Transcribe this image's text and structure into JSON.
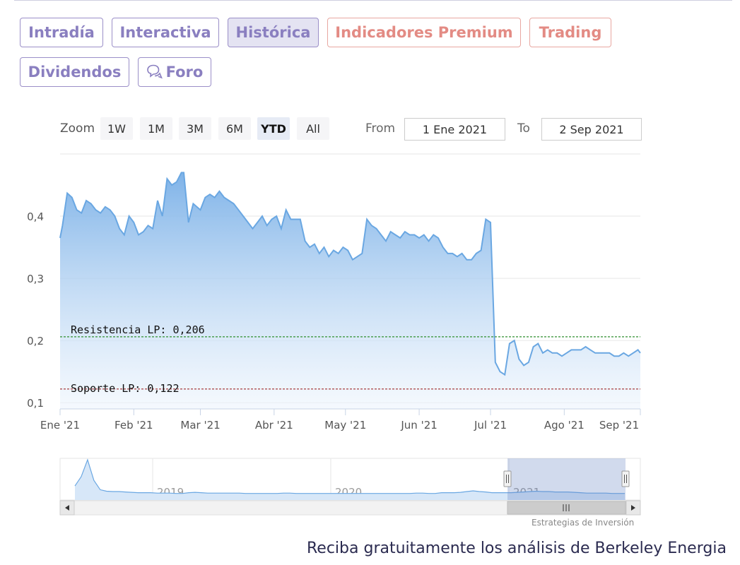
{
  "tabs": {
    "intraday": "Intradía",
    "interactive": "Interactiva",
    "historic": "Histórica",
    "premium": "Indicadores Premium",
    "trading": "Trading",
    "dividends": "Dividendos",
    "forum": "Foro"
  },
  "range_selector": {
    "zoom_label": "Zoom",
    "buttons": [
      "1W",
      "1M",
      "3M",
      "6M",
      "YTD",
      "All"
    ],
    "selected": "YTD",
    "from_label": "From",
    "from_value": "1 Ene 2021",
    "to_label": "To",
    "to_value": "2 Sep 2021"
  },
  "colors": {
    "line": "#6aa7e2",
    "fill_top": "#7fb3e8",
    "resistance": "#2f8f2f",
    "support": "#a02b2b",
    "tab_purple": "#8a7fc0",
    "tab_red": "#e38b84"
  },
  "chart_data": {
    "type": "area",
    "y_ticks": [
      "0,1",
      "0,2",
      "0,3",
      "0,4"
    ],
    "x_ticks": [
      "Ene '21",
      "Feb '21",
      "Mar '21",
      "Abr '21",
      "May '21",
      "Jun '21",
      "Jul '21",
      "Ago '21",
      "Sep '21"
    ],
    "ylim": [
      0.09,
      0.5
    ],
    "xlim": [
      "2021-01-01",
      "2021-09-02"
    ],
    "series": [
      {
        "x": [
          "2021-01-01",
          "2021-01-02",
          "2021-01-04",
          "2021-01-06",
          "2021-01-08",
          "2021-01-10",
          "2021-01-12",
          "2021-01-14",
          "2021-01-16",
          "2021-01-18",
          "2021-01-20",
          "2021-01-22",
          "2021-01-24",
          "2021-01-26",
          "2021-01-28",
          "2021-01-30",
          "2021-02-01",
          "2021-02-03",
          "2021-02-05",
          "2021-02-07",
          "2021-02-09",
          "2021-02-11",
          "2021-02-13",
          "2021-02-15",
          "2021-02-17",
          "2021-02-19",
          "2021-02-21",
          "2021-02-22",
          "2021-02-24",
          "2021-02-26",
          "2021-03-01",
          "2021-03-03",
          "2021-03-05",
          "2021-03-07",
          "2021-03-09",
          "2021-03-11",
          "2021-03-13",
          "2021-03-15",
          "2021-03-17",
          "2021-03-19",
          "2021-03-21",
          "2021-03-23",
          "2021-03-25",
          "2021-03-27",
          "2021-03-29",
          "2021-03-31",
          "2021-04-02",
          "2021-04-04",
          "2021-04-06",
          "2021-04-08",
          "2021-04-10",
          "2021-04-12",
          "2021-04-14",
          "2021-04-16",
          "2021-04-18",
          "2021-04-20",
          "2021-04-22",
          "2021-04-24",
          "2021-04-26",
          "2021-04-28",
          "2021-04-30",
          "2021-05-02",
          "2021-05-04",
          "2021-05-06",
          "2021-05-08",
          "2021-05-10",
          "2021-05-12",
          "2021-05-14",
          "2021-05-16",
          "2021-05-18",
          "2021-05-20",
          "2021-05-22",
          "2021-05-24",
          "2021-05-26",
          "2021-05-28",
          "2021-05-30",
          "2021-06-01",
          "2021-06-03",
          "2021-06-05",
          "2021-06-07",
          "2021-06-09",
          "2021-06-11",
          "2021-06-13",
          "2021-06-15",
          "2021-06-17",
          "2021-06-19",
          "2021-06-21",
          "2021-06-23",
          "2021-06-25",
          "2021-06-27",
          "2021-06-29",
          "2021-07-01",
          "2021-07-03",
          "2021-07-05",
          "2021-07-07",
          "2021-07-09",
          "2021-07-11",
          "2021-07-13",
          "2021-07-15",
          "2021-07-17",
          "2021-07-19",
          "2021-07-21",
          "2021-07-23",
          "2021-07-25",
          "2021-07-27",
          "2021-07-29",
          "2021-07-31",
          "2021-08-02",
          "2021-08-04",
          "2021-08-06",
          "2021-08-08",
          "2021-08-10",
          "2021-08-12",
          "2021-08-14",
          "2021-08-16",
          "2021-08-18",
          "2021-08-20",
          "2021-08-22",
          "2021-08-24",
          "2021-08-26",
          "2021-08-28",
          "2021-08-30",
          "2021-09-01",
          "2021-09-02"
        ],
        "y": [
          0.365,
          0.385,
          0.437,
          0.43,
          0.41,
          0.405,
          0.425,
          0.42,
          0.41,
          0.405,
          0.415,
          0.41,
          0.4,
          0.38,
          0.37,
          0.4,
          0.39,
          0.37,
          0.375,
          0.385,
          0.38,
          0.425,
          0.4,
          0.46,
          0.45,
          0.455,
          0.47,
          0.47,
          0.39,
          0.42,
          0.41,
          0.43,
          0.435,
          0.43,
          0.44,
          0.43,
          0.425,
          0.42,
          0.41,
          0.4,
          0.39,
          0.38,
          0.39,
          0.4,
          0.385,
          0.395,
          0.4,
          0.38,
          0.41,
          0.395,
          0.395,
          0.395,
          0.36,
          0.35,
          0.355,
          0.34,
          0.35,
          0.335,
          0.345,
          0.34,
          0.35,
          0.345,
          0.33,
          0.335,
          0.34,
          0.395,
          0.385,
          0.38,
          0.37,
          0.36,
          0.375,
          0.37,
          0.365,
          0.375,
          0.37,
          0.37,
          0.365,
          0.37,
          0.36,
          0.37,
          0.365,
          0.35,
          0.34,
          0.34,
          0.335,
          0.34,
          0.33,
          0.33,
          0.34,
          0.345,
          0.395,
          0.39,
          0.165,
          0.15,
          0.145,
          0.195,
          0.2,
          0.17,
          0.16,
          0.165,
          0.19,
          0.195,
          0.18,
          0.185,
          0.18,
          0.18,
          0.175,
          0.18,
          0.185,
          0.185,
          0.185,
          0.19,
          0.185,
          0.18,
          0.18,
          0.18,
          0.18,
          0.175,
          0.175,
          0.18,
          0.175,
          0.18,
          0.185,
          0.18
        ]
      }
    ],
    "annotations": [
      {
        "label": "Resistencia LP: 0,206",
        "value": 0.206
      },
      {
        "label": "Soporte LP: 0,122",
        "value": 0.122
      }
    ],
    "navigator": {
      "x_ticks": [
        "2019",
        "2020",
        "2021"
      ],
      "values": [
        0.3,
        0.55,
        1.0,
        0.45,
        0.2,
        0.16,
        0.15,
        0.15,
        0.14,
        0.13,
        0.12,
        0.12,
        0.12,
        0.11,
        0.11,
        0.11,
        0.1,
        0.1,
        0.12,
        0.13,
        0.12,
        0.11,
        0.11,
        0.11,
        0.11,
        0.11,
        0.11,
        0.1,
        0.1,
        0.1,
        0.1,
        0.1,
        0.1,
        0.11,
        0.11,
        0.1,
        0.1,
        0.1,
        0.1,
        0.1,
        0.1,
        0.1,
        0.1,
        0.1,
        0.1,
        0.1,
        0.1,
        0.1,
        0.1,
        0.1,
        0.1,
        0.1,
        0.1,
        0.1,
        0.11,
        0.11,
        0.1,
        0.1,
        0.12,
        0.12,
        0.12,
        0.13,
        0.15,
        0.17,
        0.15,
        0.14,
        0.12,
        0.12,
        0.12,
        0.12,
        0.13,
        0.14,
        0.15,
        0.16,
        0.15,
        0.15,
        0.14,
        0.14,
        0.14,
        0.13,
        0.12,
        0.11,
        0.11,
        0.11,
        0.11,
        0.1,
        0.1,
        0.1
      ]
    }
  },
  "credit": "Estrategias de Inversión",
  "footer": "Reciba gratuitamente los análisis de Berkeley Energia"
}
